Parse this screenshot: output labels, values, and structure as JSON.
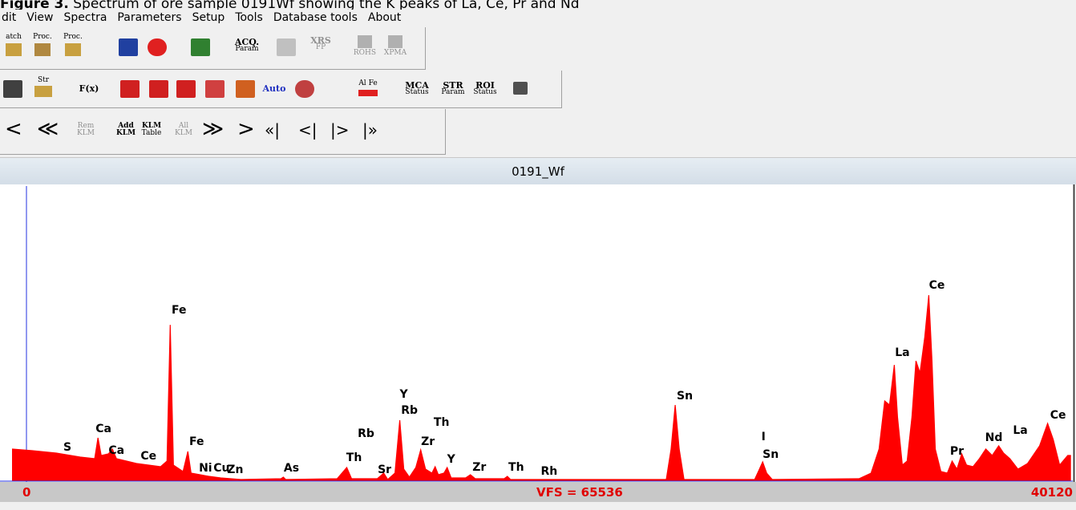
{
  "caption": {
    "label": "Figure 3.",
    "text": "Spectrum of ore sample 0191Wf showing the K peaks of La, Ce, Pr and Nd"
  },
  "menu": [
    "dit",
    "View",
    "Spectra",
    "Parameters",
    "Setup",
    "Tools",
    "Database tools",
    "About"
  ],
  "toolbar": {
    "batch": "atch",
    "proc1": "Proc.",
    "proc2": "Proc.",
    "acq": [
      "ACQ.",
      "Param"
    ],
    "xrs": [
      "XRS",
      "FP"
    ],
    "rohs": "ROHS",
    "xpma": "XPMA",
    "str_icon": "Str",
    "fx": "F(x)",
    "auto": "Auto",
    "alfe": [
      "Al",
      "Fe"
    ],
    "mca": [
      "MCA",
      "Status"
    ],
    "str": [
      "STR",
      "Param"
    ],
    "roi": [
      "ROI",
      "Status"
    ],
    "nav_left": [
      "<",
      "≪"
    ],
    "rem": [
      "Rem",
      "KLM"
    ],
    "add": [
      "Add",
      "KLM"
    ],
    "klm": [
      "KLM",
      "Table"
    ],
    "all": [
      "All",
      "KLM"
    ],
    "nav_right": [
      "≫",
      ">",
      "«|",
      "<|",
      "|>",
      "|»"
    ]
  },
  "chart_data": {
    "type": "area",
    "title": "0191_Wf",
    "color": "#ff0000",
    "x": [
      510,
      1260,
      2160,
      3060,
      3600,
      3720,
      3840,
      4110,
      4260,
      4410,
      5160,
      6060,
      6300,
      6420,
      6540,
      6900,
      7080,
      7200,
      7860,
      8310,
      9060,
      10560,
      10650,
      10740,
      12660,
      13020,
      13200,
      14160,
      14400,
      14550,
      14820,
      15000,
      15150,
      15360,
      15600,
      15780,
      15960,
      16200,
      16320,
      16440,
      16650,
      16770,
      16920,
      17460,
      17640,
      17820,
      18900,
      19020,
      19140,
      24960,
      25140,
      25290,
      25440,
      25620,
      28260,
      28440,
      28560,
      28710,
      28920,
      32160,
      32610,
      32910,
      33120,
      33300,
      33480,
      33600,
      33780,
      33960,
      34140,
      34290,
      34440,
      34620,
      34770,
      34890,
      35010,
      35220,
      35460,
      35640,
      35820,
      36000,
      36180,
      36420,
      36660,
      36900,
      37140,
      37380,
      37560,
      37800,
      38100,
      38460,
      38910,
      39210,
      39420,
      39660,
      39960,
      40080
    ],
    "values": [
      7120,
      6764,
      6230,
      5340,
      4984,
      9612,
      5696,
      6052,
      7120,
      4984,
      3916,
      3204,
      4450,
      34710,
      3560,
      2136,
      6586,
      1780,
      1068,
      712,
      356,
      534,
      890,
      356,
      534,
      3026,
      534,
      534,
      1780,
      356,
      1780,
      13528,
      2670,
      890,
      3026,
      6942,
      2670,
      1780,
      3204,
      1424,
      1780,
      3026,
      712,
      712,
      1424,
      534,
      534,
      1068,
      356,
      356,
      7120,
      16910,
      7120,
      356,
      356,
      2670,
      4272,
      1780,
      356,
      534,
      1780,
      7120,
      17800,
      16910,
      25810,
      14240,
      3560,
      4450,
      14240,
      26700,
      24030,
      32040,
      41296,
      26700,
      7120,
      2136,
      1780,
      4450,
      2670,
      6052,
      3560,
      3204,
      4984,
      7120,
      5696,
      7832,
      6230,
      4984,
      2670,
      3916,
      7832,
      12816,
      9256,
      3560,
      5696,
      5696
    ],
    "xlim": [
      0,
      40120
    ],
    "xticks": [
      0,
      40120
    ],
    "ylim": [
      0,
      65536
    ],
    "vfs_label": "VFS = 65536",
    "annotations": [
      {
        "text": "S",
        "x": 2580,
        "y": 7476
      },
      {
        "text": "Ca",
        "x": 3930,
        "y": 11570
      },
      {
        "text": "Ca",
        "x": 4410,
        "y": 6764
      },
      {
        "text": "Ce",
        "x": 5610,
        "y": 5518
      },
      {
        "text": "Fe",
        "x": 6750,
        "y": 37914
      },
      {
        "text": "Fe",
        "x": 7410,
        "y": 8722
      },
      {
        "text": "Ni",
        "x": 7740,
        "y": 2848
      },
      {
        "text": "Cu",
        "x": 8340,
        "y": 2848
      },
      {
        "text": "Zn",
        "x": 8850,
        "y": 2492
      },
      {
        "text": "As",
        "x": 10950,
        "y": 2848
      },
      {
        "text": "Th",
        "x": 13290,
        "y": 5162
      },
      {
        "text": "Rb",
        "x": 13740,
        "y": 10502
      },
      {
        "text": "Sr",
        "x": 14430,
        "y": 2492
      },
      {
        "text": "Y",
        "x": 15150,
        "y": 19224
      },
      {
        "text": "Rb",
        "x": 15360,
        "y": 15664
      },
      {
        "text": "Th",
        "x": 16560,
        "y": 12994
      },
      {
        "text": "Zr",
        "x": 16050,
        "y": 8722
      },
      {
        "text": "Y",
        "x": 16920,
        "y": 4806
      },
      {
        "text": "Zr",
        "x": 17970,
        "y": 3026
      },
      {
        "text": "Th",
        "x": 19350,
        "y": 3026
      },
      {
        "text": "Rh",
        "x": 20580,
        "y": 2136
      },
      {
        "text": "Sn",
        "x": 25650,
        "y": 18868
      },
      {
        "text": "I",
        "x": 28590,
        "y": 9790
      },
      {
        "text": "Sn",
        "x": 28860,
        "y": 5874
      },
      {
        "text": "La",
        "x": 33780,
        "y": 28480
      },
      {
        "text": "Ce",
        "x": 35070,
        "y": 43432
      },
      {
        "text": "Pr",
        "x": 35820,
        "y": 6586
      },
      {
        "text": "Nd",
        "x": 37200,
        "y": 9612
      },
      {
        "text": "La",
        "x": 38190,
        "y": 11214
      },
      {
        "text": "Ce",
        "x": 39600,
        "y": 14596
      }
    ]
  }
}
